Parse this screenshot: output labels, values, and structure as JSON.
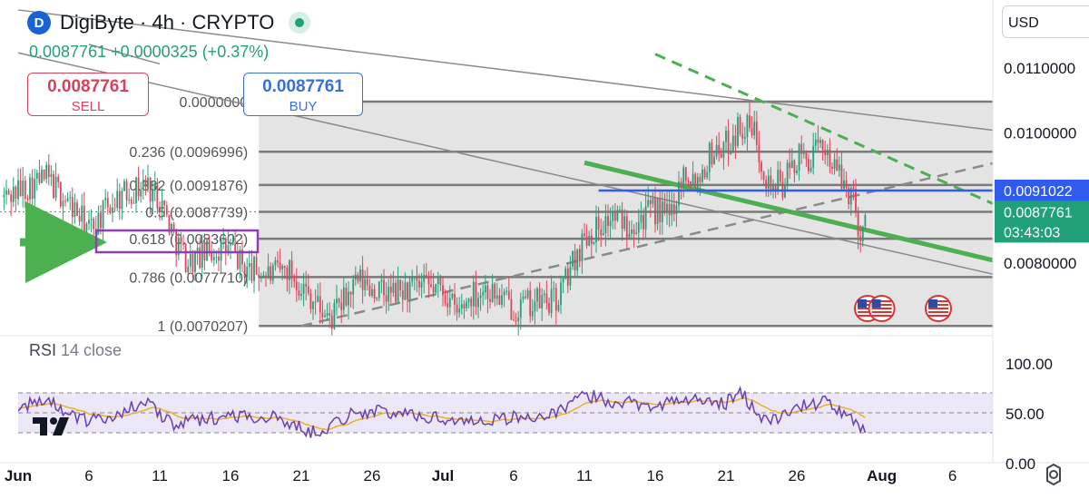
{
  "header": {
    "symbol": "DigiByte · 4h · CRYPTO",
    "logo_letter": "D",
    "quote": "0.0087761  +0.0000325 (+0.37%)"
  },
  "trade": {
    "sell_price": "0.0087761",
    "sell_label": "SELL",
    "buy_price": "0.0087761",
    "buy_label": "BUY"
  },
  "currency": "USD",
  "colors": {
    "up": "#22a07a",
    "down": "#e0435a",
    "fib": "#7a7a7a",
    "fib_zone": "#e4e4e4",
    "trend": "#4caf50",
    "blue_line": "#2f5bef",
    "rsi": "#6a3fb0",
    "rsi_ma": "#e6b229",
    "highlight_box": "#8e3fb5"
  },
  "chart_data": {
    "type": "candlestick",
    "title": "DigiByte · 4h · CRYPTO",
    "price_axis": {
      "ticks": [
        {
          "v": 0.011,
          "label": "0.0110000"
        },
        {
          "v": 0.01,
          "label": "0.0100000"
        },
        {
          "v": 0.008,
          "label": "0.0080000"
        }
      ]
    },
    "rsi_axis": {
      "ticks": [
        {
          "v": 100,
          "label": "100.00"
        },
        {
          "v": 50,
          "label": "50.00"
        },
        {
          "v": 0,
          "label": "0.00"
        }
      ]
    },
    "date_axis": [
      {
        "t": "2024-06-01",
        "label": "Jun"
      },
      {
        "t": "2024-06-06",
        "label": "6"
      },
      {
        "t": "2024-06-11",
        "label": "11"
      },
      {
        "t": "2024-06-16",
        "label": "16"
      },
      {
        "t": "2024-06-21",
        "label": "21"
      },
      {
        "t": "2024-06-26",
        "label": "26"
      },
      {
        "t": "2024-07-01",
        "label": "Jul"
      },
      {
        "t": "2024-07-06",
        "label": "6"
      },
      {
        "t": "2024-07-11",
        "label": "11"
      },
      {
        "t": "2024-07-16",
        "label": "16"
      },
      {
        "t": "2024-07-21",
        "label": "21"
      },
      {
        "t": "2024-07-26",
        "label": "26"
      },
      {
        "t": "2024-08-01",
        "label": "Aug"
      },
      {
        "t": "2024-08-06",
        "label": "6"
      }
    ],
    "last_price": {
      "value": 0.0087761,
      "label": "0.0087761",
      "countdown": "03:43:03"
    },
    "blue_line": {
      "value": 0.0091022,
      "label": "0.0091022"
    },
    "fib_levels": [
      {
        "ratio": 0,
        "price": 0.01047,
        "label": "0.0000000"
      },
      {
        "ratio": 0.236,
        "price": 0.0096996,
        "label": "0.236 (0.0096996)"
      },
      {
        "ratio": 0.382,
        "price": 0.0091876,
        "label": "0.382 (0.0091876)"
      },
      {
        "ratio": 0.5,
        "price": 0.0087739,
        "label": "0.5 (0.0087739)"
      },
      {
        "ratio": 0.618,
        "price": 0.0083602,
        "label": "0.618 (0.0083602)"
      },
      {
        "ratio": 0.786,
        "price": 0.007771,
        "label": "0.786 (0.0077710)"
      },
      {
        "ratio": 1,
        "price": 0.00702,
        "label": "1 (0.0070207)"
      }
    ],
    "trend_lines": [
      {
        "name": "upper-gray",
        "style": "solid",
        "color": "#8a8a8a",
        "p1": {
          "t": "2024-06-01",
          "v": 0.01188
        },
        "p2": {
          "t": "2024-08-10",
          "v": 0.01
        }
      },
      {
        "name": "lower-gray",
        "style": "solid",
        "color": "#8a8a8a",
        "p1": {
          "t": "2024-06-01",
          "v": 0.01122
        },
        "p2": {
          "t": "2024-08-10",
          "v": 0.00776
        }
      },
      {
        "name": "top-gray",
        "style": "solid",
        "color": "#8a8a8a",
        "p1": {
          "t": "2024-06-06",
          "v": 0.01135
        },
        "p2": {
          "t": "2024-06-11",
          "v": 0.01105
        }
      },
      {
        "name": "rising-dashed",
        "style": "dashed",
        "color": "#8a8a8a",
        "p1": {
          "t": "2024-06-21",
          "v": 0.00702
        },
        "p2": {
          "t": "2024-08-10",
          "v": 0.00958
        }
      },
      {
        "name": "green-support",
        "style": "solid",
        "color": "#4caf50",
        "p1": {
          "t": "2024-07-11",
          "v": 0.00953
        },
        "p2": {
          "t": "2024-08-10",
          "v": 0.00797
        }
      },
      {
        "name": "green-dashed",
        "style": "dashed",
        "color": "#4caf50",
        "p1": {
          "t": "2024-07-16",
          "v": 0.0112
        },
        "p2": {
          "t": "2024-08-10",
          "v": 0.00879
        }
      }
    ],
    "events": [
      {
        "t": "2024-07-31",
        "label": "US"
      },
      {
        "t": "2024-08-01",
        "label": "US"
      },
      {
        "t": "2024-08-05",
        "label": "US"
      }
    ],
    "candle_path": [
      {
        "t": "2024-05-31",
        "v": 0.009
      },
      {
        "t": "2024-06-03",
        "v": 0.0093
      },
      {
        "t": "2024-06-05",
        "v": 0.0088
      },
      {
        "t": "2024-06-06",
        "v": 0.0085
      },
      {
        "t": "2024-06-08",
        "v": 0.009
      },
      {
        "t": "2024-06-10",
        "v": 0.0092
      },
      {
        "t": "2024-06-11",
        "v": 0.009
      },
      {
        "t": "2024-06-12",
        "v": 0.0084
      },
      {
        "t": "2024-06-13",
        "v": 0.008
      },
      {
        "t": "2024-06-15",
        "v": 0.0082
      },
      {
        "t": "2024-06-16",
        "v": 0.0082
      },
      {
        "t": "2024-06-17",
        "v": 0.0079
      },
      {
        "t": "2024-06-19",
        "v": 0.0078
      },
      {
        "t": "2024-06-20",
        "v": 0.0079
      },
      {
        "t": "2024-06-22",
        "v": 0.0074
      },
      {
        "t": "2024-06-23",
        "v": 0.0071
      },
      {
        "t": "2024-06-25",
        "v": 0.0077
      },
      {
        "t": "2024-06-27",
        "v": 0.0075
      },
      {
        "t": "2024-06-29",
        "v": 0.0076
      },
      {
        "t": "2024-07-01",
        "v": 0.0076
      },
      {
        "t": "2024-07-02",
        "v": 0.0072
      },
      {
        "t": "2024-07-03",
        "v": 0.0075
      },
      {
        "t": "2024-07-04",
        "v": 0.0076
      },
      {
        "t": "2024-07-06",
        "v": 0.0073
      },
      {
        "t": "2024-07-08",
        "v": 0.0074
      },
      {
        "t": "2024-07-09",
        "v": 0.0074
      },
      {
        "t": "2024-07-10",
        "v": 0.0079
      },
      {
        "t": "2024-07-11",
        "v": 0.0084
      },
      {
        "t": "2024-07-13",
        "v": 0.0087
      },
      {
        "t": "2024-07-14",
        "v": 0.0086
      },
      {
        "t": "2024-07-16",
        "v": 0.0088
      },
      {
        "t": "2024-07-17",
        "v": 0.0087
      },
      {
        "t": "2024-07-18",
        "v": 0.0094
      },
      {
        "t": "2024-07-19",
        "v": 0.0093
      },
      {
        "t": "2024-07-20",
        "v": 0.0097
      },
      {
        "t": "2024-07-21",
        "v": 0.0098
      },
      {
        "t": "2024-07-22",
        "v": 0.0101
      },
      {
        "t": "2024-07-23",
        "v": 0.01
      },
      {
        "t": "2024-07-24",
        "v": 0.0092
      },
      {
        "t": "2024-07-25",
        "v": 0.0092
      },
      {
        "t": "2024-07-26",
        "v": 0.0096
      },
      {
        "t": "2024-07-27",
        "v": 0.0096
      },
      {
        "t": "2024-07-28",
        "v": 0.0098
      },
      {
        "t": "2024-07-29",
        "v": 0.0093
      },
      {
        "t": "2024-07-30",
        "v": 0.009
      },
      {
        "t": "2024-07-30T12:00",
        "v": 0.0084
      },
      {
        "t": "2024-07-31",
        "v": 0.00878
      }
    ],
    "rsi_path": [
      {
        "t": "2024-05-31",
        "v": 55
      },
      {
        "t": "2024-06-03",
        "v": 62
      },
      {
        "t": "2024-06-06",
        "v": 40
      },
      {
        "t": "2024-06-10",
        "v": 60
      },
      {
        "t": "2024-06-12",
        "v": 38
      },
      {
        "t": "2024-06-16",
        "v": 48
      },
      {
        "t": "2024-06-19",
        "v": 45
      },
      {
        "t": "2024-06-22",
        "v": 30
      },
      {
        "t": "2024-06-25",
        "v": 52
      },
      {
        "t": "2024-06-29",
        "v": 48
      },
      {
        "t": "2024-07-02",
        "v": 42
      },
      {
        "t": "2024-07-06",
        "v": 45
      },
      {
        "t": "2024-07-09",
        "v": 48
      },
      {
        "t": "2024-07-11",
        "v": 68
      },
      {
        "t": "2024-07-13",
        "v": 62
      },
      {
        "t": "2024-07-16",
        "v": 58
      },
      {
        "t": "2024-07-18",
        "v": 63
      },
      {
        "t": "2024-07-21",
        "v": 60
      },
      {
        "t": "2024-07-22",
        "v": 70
      },
      {
        "t": "2024-07-24",
        "v": 40
      },
      {
        "t": "2024-07-26",
        "v": 55
      },
      {
        "t": "2024-07-28",
        "v": 62
      },
      {
        "t": "2024-07-30",
        "v": 40
      },
      {
        "t": "2024-07-31",
        "v": 32
      }
    ],
    "rsi_band": [
      30,
      70
    ]
  }
}
